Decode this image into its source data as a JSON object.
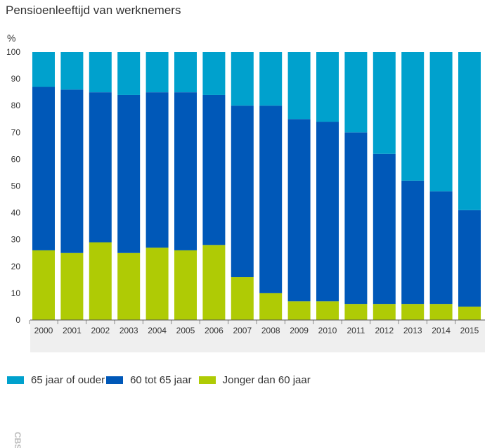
{
  "chart_data": {
    "type": "bar",
    "stacked": true,
    "title": "Pensioenleeftijd van werknemers",
    "ylabel": "%",
    "xlabel": "",
    "ylim": [
      0,
      100
    ],
    "yticks": [
      0,
      10,
      20,
      30,
      40,
      50,
      60,
      70,
      80,
      90,
      100
    ],
    "grid": false,
    "legend_position": "bottom-left",
    "categories": [
      "2000",
      "2001",
      "2002",
      "2003",
      "2004",
      "2005",
      "2006",
      "2007",
      "2008",
      "2009",
      "2010",
      "2011",
      "2012",
      "2013",
      "2014",
      "2015"
    ],
    "series": [
      {
        "name": "Jonger dan 60 jaar",
        "color": "#afcb05",
        "values": [
          26,
          25,
          29,
          25,
          27,
          26,
          28,
          16,
          10,
          7,
          7,
          6,
          6,
          6,
          6,
          5
        ]
      },
      {
        "name": "60 tot 65 jaar",
        "color": "#0058b8",
        "values": [
          61,
          61,
          56,
          59,
          58,
          59,
          56,
          64,
          70,
          68,
          67,
          64,
          56,
          46,
          42,
          36
        ]
      },
      {
        "name": "65 jaar of ouder",
        "color": "#00a1cd",
        "values": [
          13,
          14,
          15,
          16,
          15,
          15,
          16,
          20,
          20,
          25,
          26,
          30,
          38,
          48,
          52,
          59
        ]
      }
    ],
    "legend_order": [
      "65 jaar of ouder",
      "60 tot 65 jaar",
      "Jonger dan 60 jaar"
    ]
  },
  "logo_text": "CBS"
}
